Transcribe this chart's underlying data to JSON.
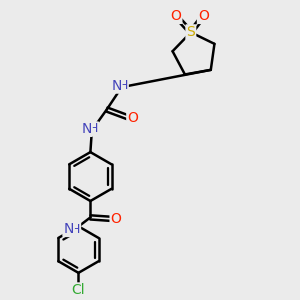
{
  "background_color": "#ebebeb",
  "atom_colors": {
    "C": "#000000",
    "H": "#000000",
    "N": "#4444bb",
    "O": "#ff2200",
    "S": "#ccaa00",
    "Cl": "#33aa33"
  },
  "bond_color": "#000000",
  "bond_width": 1.8,
  "font_size_atoms": 10,
  "figsize": [
    3.0,
    3.0
  ],
  "dpi": 100,
  "xlim": [
    0,
    10
  ],
  "ylim": [
    0,
    10
  ]
}
